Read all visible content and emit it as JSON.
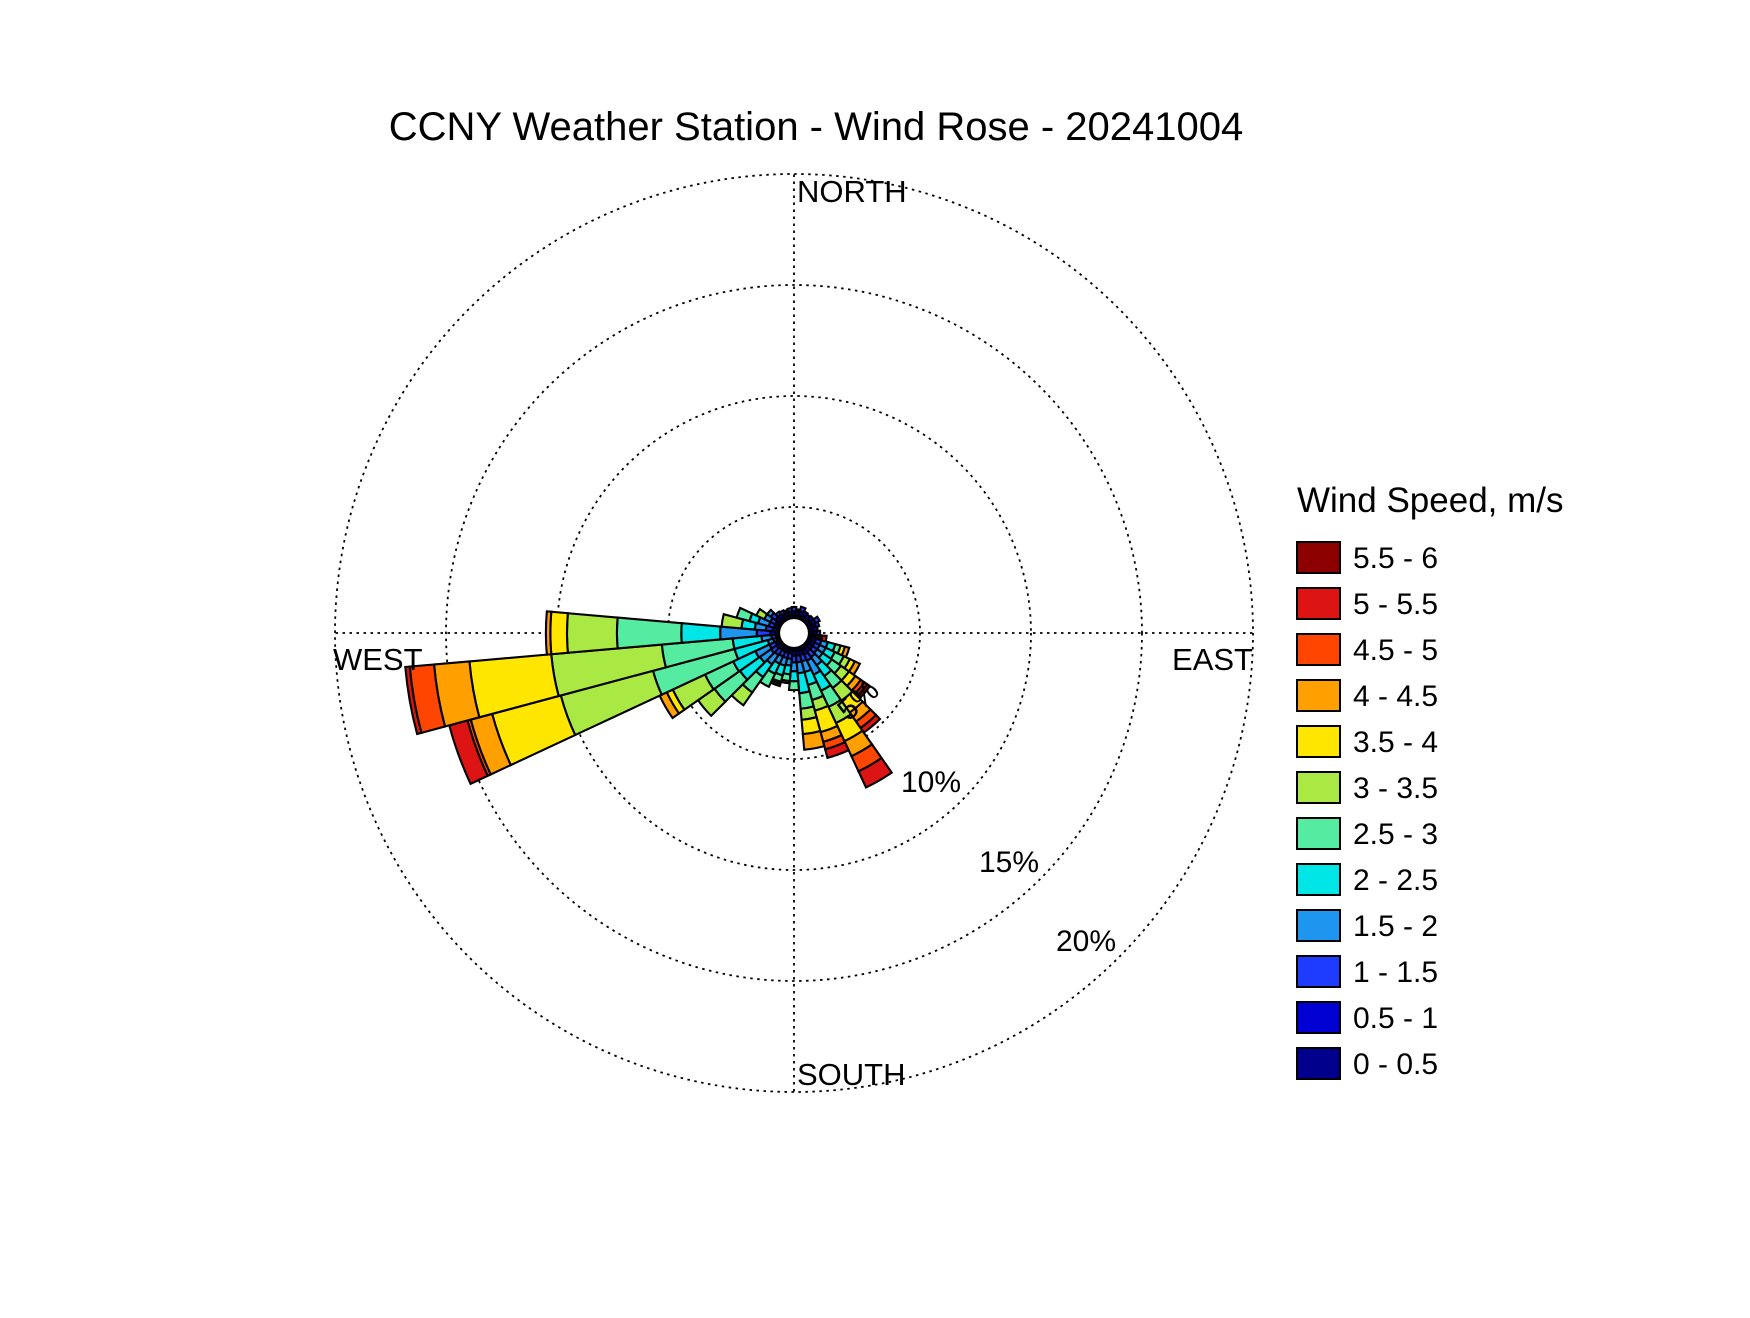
{
  "chart_data": {
    "type": "windrose_stacked_polar_bar",
    "title": "CCNY Weather Station - Wind Rose - 20241004",
    "direction_labels": {
      "north": "NORTH",
      "east": "EAST",
      "south": "SOUTH",
      "west": "WEST"
    },
    "ring_labels": [
      "5%",
      "10%",
      "15%",
      "20%"
    ],
    "ring_values_percent": [
      5,
      10,
      15,
      20
    ],
    "grid": "dotted",
    "legend_title": "Wind Speed, m/s",
    "legend_position": "right",
    "speed_bins": [
      {
        "label": "0 - 0.5",
        "color": "#00008C"
      },
      {
        "label": "0.5 - 1",
        "color": "#0000D2"
      },
      {
        "label": "1 - 1.5",
        "color": "#1E3CFF"
      },
      {
        "label": "1.5 - 2",
        "color": "#1E96F0"
      },
      {
        "label": "2 - 2.5",
        "color": "#00E6E6"
      },
      {
        "label": "2.5 - 3",
        "color": "#55EBA0"
      },
      {
        "label": "3 - 3.5",
        "color": "#AAE844"
      },
      {
        "label": "3.5 - 4",
        "color": "#FFE600"
      },
      {
        "label": "4 - 4.5",
        "color": "#FFA000"
      },
      {
        "label": "4.5 - 5",
        "color": "#FF4500"
      },
      {
        "label": "5 - 5.5",
        "color": "#DC1414"
      },
      {
        "label": "5.5 - 6",
        "color": "#8C0000"
      }
    ],
    "directions_deg": [
      0,
      10,
      20,
      30,
      40,
      50,
      60,
      70,
      80,
      90,
      100,
      110,
      120,
      130,
      140,
      150,
      160,
      170,
      180,
      190,
      200,
      210,
      220,
      230,
      240,
      250,
      260,
      270,
      280,
      290,
      300,
      310,
      320,
      330,
      340,
      350
    ],
    "frequencies_percent_by_direction": [
      [
        0.15,
        0.15,
        0.2,
        0,
        0,
        0,
        0,
        0,
        0,
        0,
        0,
        0
      ],
      [
        0.15,
        0.15,
        0.1,
        0,
        0,
        0,
        0,
        0,
        0,
        0,
        0,
        0
      ],
      [
        0.15,
        0.2,
        0.2,
        0,
        0,
        0,
        0,
        0,
        0,
        0,
        0,
        0
      ],
      [
        0.2,
        0.2,
        0,
        0,
        0,
        0,
        0,
        0,
        0,
        0,
        0,
        0
      ],
      [
        0.15,
        0.2,
        0,
        0,
        0,
        0,
        0,
        0,
        0,
        0,
        0,
        0
      ],
      [
        0.2,
        0.2,
        0,
        0,
        0,
        0,
        0,
        0,
        0,
        0,
        0,
        0
      ],
      [
        0.2,
        0.2,
        0.2,
        0,
        0,
        0,
        0,
        0,
        0,
        0,
        0,
        0
      ],
      [
        0.2,
        0.15,
        0.15,
        0,
        0,
        0,
        0,
        0,
        0,
        0,
        0,
        0
      ],
      [
        0.2,
        0.2,
        0,
        0,
        0,
        0,
        0,
        0,
        0,
        0,
        0,
        0
      ],
      [
        0.2,
        0.15,
        0.15,
        0,
        0,
        0,
        0,
        0,
        0,
        0,
        0,
        0
      ],
      [
        0.1,
        0.1,
        0.1,
        0.1,
        0,
        0,
        0,
        0,
        0.1,
        0.1,
        0.2,
        0
      ],
      [
        0.15,
        0.2,
        0.25,
        0.3,
        0.35,
        0.25,
        0,
        0.2,
        0.2,
        0,
        0,
        0
      ],
      [
        0.15,
        0.2,
        0.25,
        0.3,
        0.45,
        0.45,
        0.3,
        0.25,
        0.25,
        0,
        0,
        0
      ],
      [
        0.15,
        0.2,
        0.25,
        0.3,
        0.5,
        0.5,
        0.45,
        0.35,
        0.3,
        0.2,
        0.15,
        0.15
      ],
      [
        0.15,
        0.2,
        0.3,
        0.45,
        0.6,
        0.65,
        0.7,
        0.65,
        0.5,
        0.35,
        0.25,
        0
      ],
      [
        0.2,
        0.2,
        0.3,
        0.7,
        0.8,
        0.8,
        0.8,
        0.9,
        0.75,
        0.75,
        0.8,
        0
      ],
      [
        0.15,
        0.2,
        0.3,
        0.5,
        0.6,
        0.7,
        0.5,
        1.0,
        0.45,
        0.35,
        0.4,
        0
      ],
      [
        0.15,
        0.2,
        0.3,
        0.5,
        0.9,
        0.7,
        0.5,
        0.65,
        0.7,
        0,
        0,
        0
      ],
      [
        0.15,
        0.2,
        0.3,
        0.4,
        0.45,
        0.4,
        0,
        0,
        0,
        0,
        0,
        0
      ],
      [
        0.1,
        0.15,
        0.25,
        0.3,
        0.4,
        0.3,
        0,
        0.1,
        0,
        0,
        0,
        0
      ],
      [
        0.1,
        0.15,
        0.25,
        0.35,
        0.45,
        0.3,
        0,
        0.1,
        0.1,
        0,
        0,
        0
      ],
      [
        0.1,
        0.15,
        0.25,
        0.35,
        0.5,
        0.65,
        0,
        0,
        0,
        0,
        0,
        0
      ],
      [
        0.1,
        0.15,
        0.3,
        0.5,
        0.7,
        0.85,
        0.7,
        0,
        0,
        0,
        0,
        0
      ],
      [
        0.1,
        0.2,
        0.3,
        0.6,
        1.1,
        1.4,
        0.9,
        0,
        0,
        0,
        0,
        0
      ],
      [
        0.1,
        0.15,
        0.3,
        0.7,
        1.1,
        1.4,
        1.6,
        0.3,
        0.35,
        0,
        0,
        0
      ],
      [
        0.05,
        0.1,
        0.15,
        0.25,
        1.55,
        3.8,
        4.3,
        3.2,
        1.0,
        0.15,
        0.85,
        0
      ],
      [
        0.05,
        0.1,
        0.2,
        0.45,
        1.3,
        3.2,
        5.0,
        3.7,
        1.6,
        1.1,
        0.2,
        0
      ],
      [
        0.15,
        0.25,
        0.6,
        1.65,
        1.75,
        2.9,
        2.25,
        0.75,
        0.2,
        0,
        0,
        0
      ],
      [
        0.1,
        0.2,
        0.3,
        0.5,
        0.6,
        0,
        0.9,
        0,
        0,
        0,
        0,
        0
      ],
      [
        0.1,
        0.15,
        0.25,
        0.5,
        0.4,
        0.6,
        0,
        0,
        0,
        0,
        0,
        0
      ],
      [
        0.1,
        0.15,
        0.25,
        0.3,
        0,
        0,
        0.4,
        0,
        0,
        0,
        0,
        0
      ],
      [
        0.15,
        0.2,
        0.25,
        0.2,
        0,
        0,
        0,
        0,
        0,
        0,
        0,
        0
      ],
      [
        0.15,
        0.2,
        0.15,
        0,
        0,
        0,
        0,
        0,
        0,
        0,
        0,
        0
      ],
      [
        0.15,
        0.15,
        0.15,
        0,
        0,
        0,
        0,
        0,
        0,
        0,
        0,
        0
      ],
      [
        0.15,
        0.15,
        0.1,
        0,
        0,
        0,
        0,
        0,
        0,
        0,
        0,
        0
      ],
      [
        0.15,
        0.15,
        0.15,
        0,
        0,
        0,
        0,
        0,
        0,
        0,
        0,
        0
      ]
    ]
  }
}
